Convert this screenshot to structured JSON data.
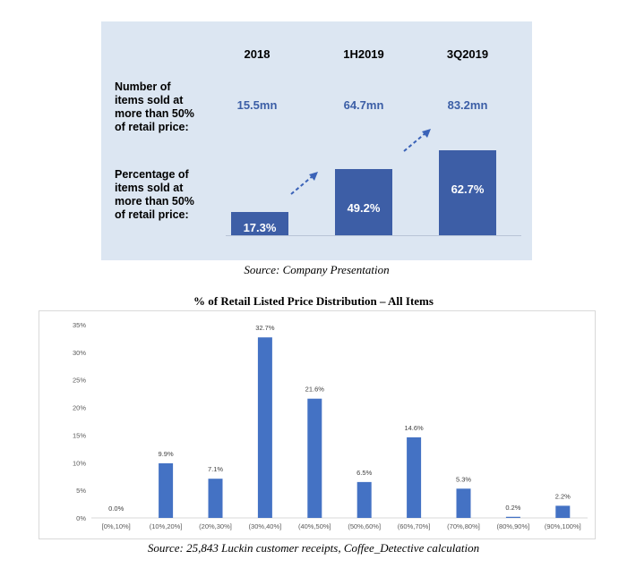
{
  "summary": {
    "columns": [
      "2018",
      "1H2019",
      "3Q2019"
    ],
    "row_label_count": "Number of items sold at more than 50% of retail price:",
    "row_label_count_lines": [
      "Number of",
      "items sold at",
      "more than 50%",
      "of retail price:"
    ],
    "row_label_pct_lines": [
      "Percentage of",
      "items sold at",
      "more than 50%",
      "of retail price:"
    ],
    "counts": [
      "15.5mn",
      "64.7mn",
      "83.2mn"
    ],
    "percent_labels": [
      "17.3%",
      "49.2%",
      "62.7%"
    ],
    "percent_values": [
      17.3,
      49.2,
      62.7
    ],
    "source": "Source: Company Presentation",
    "bar_color": "#3d5ea6",
    "panel_color": "#dce6f2",
    "count_color": "#3b5ea6",
    "arrow_color": "#3b63b8"
  },
  "chart_data": {
    "type": "bar",
    "title": "% of Retail Listed Price Distribution – All Items",
    "categories": [
      "[0%,10%]",
      "(10%,20%]",
      "(20%,30%]",
      "(30%,40%]",
      "(40%,50%]",
      "(50%,60%]",
      "(60%,70%]",
      "(70%,80%]",
      "(80%,90%]",
      "(90%,100%]"
    ],
    "values": [
      0.0,
      9.9,
      7.1,
      32.7,
      21.6,
      6.5,
      14.6,
      5.3,
      0.2,
      2.2
    ],
    "data_labels": [
      "0.0%",
      "9.9%",
      "7.1%",
      "32.7%",
      "21.6%",
      "6.5%",
      "14.6%",
      "5.3%",
      "0.2%",
      "2.2%"
    ],
    "yticks": [
      "0%",
      "5%",
      "10%",
      "15%",
      "20%",
      "25%",
      "30%",
      "35%"
    ],
    "ylim": [
      0,
      35
    ],
    "grid": false,
    "xlabel": "",
    "ylabel": "",
    "bar_color": "#4472c4"
  },
  "chart_source": "Source: 25,843 Luckin customer receipts, Coffee_Detective calculation"
}
